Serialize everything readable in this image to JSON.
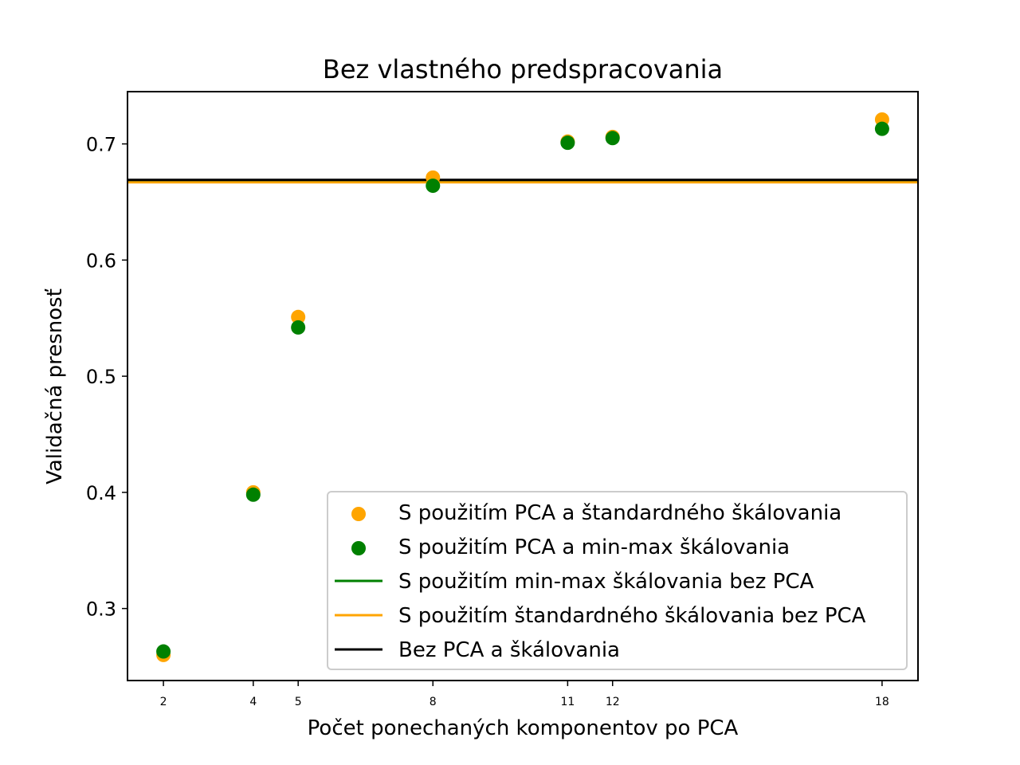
{
  "chart_data": {
    "type": "scatter",
    "title": "Bez vlastného predspracovania",
    "xlabel": "Počet ponechaných komponentov po PCA",
    "ylabel": "Validačná presnosť",
    "xlim": [
      1.2,
      18.8
    ],
    "ylim": [
      0.238,
      0.745
    ],
    "x_ticks": [
      2,
      4,
      5,
      8,
      11,
      12,
      18
    ],
    "y_ticks": [
      0.3,
      0.4,
      0.5,
      0.6,
      0.7
    ],
    "y_tick_labels": [
      "0.3",
      "0.4",
      "0.5",
      "0.6",
      "0.7"
    ],
    "grid": false,
    "legend_position": "lower-right",
    "series": [
      {
        "name": "S použitím PCA a štandardného škálovania",
        "kind": "scatter",
        "color": "#FFA500",
        "x": [
          2,
          4,
          5,
          8,
          11,
          12,
          18
        ],
        "y": [
          0.26,
          0.4,
          0.551,
          0.671,
          0.702,
          0.706,
          0.721
        ]
      },
      {
        "name": "S použitím PCA a min-max škálovania",
        "kind": "scatter",
        "color": "#008000",
        "x": [
          2,
          4,
          5,
          8,
          11,
          12,
          18
        ],
        "y": [
          0.263,
          0.398,
          0.542,
          0.664,
          0.701,
          0.705,
          0.713
        ]
      },
      {
        "name": "S použitím min-max škálovania bez PCA",
        "kind": "hline",
        "color": "#008000",
        "y": 0.668
      },
      {
        "name": "S použitím štandardného škálovania bez PCA",
        "kind": "hline",
        "color": "#FFA500",
        "y": 0.667
      },
      {
        "name": "Bez PCA a škálovania",
        "kind": "hline",
        "color": "#000000",
        "y": 0.669
      }
    ]
  }
}
